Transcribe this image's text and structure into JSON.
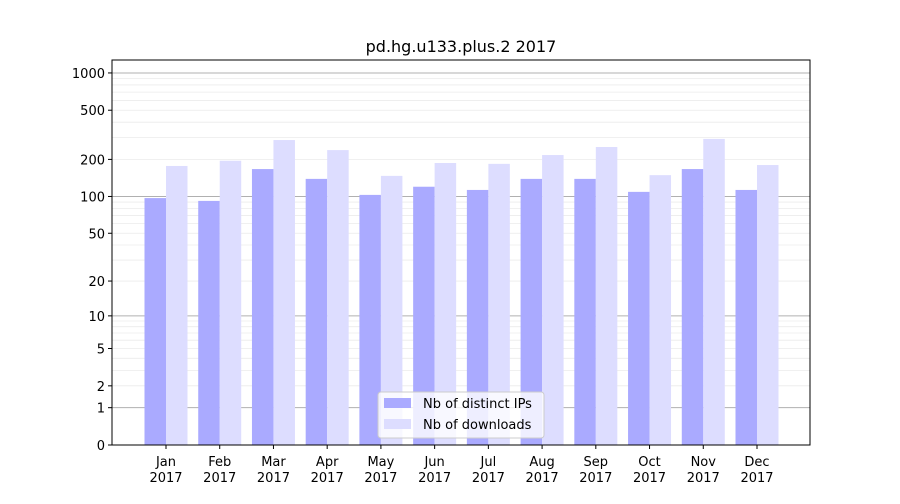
{
  "chart_data": {
    "type": "bar",
    "title": "pd.hg.u133.plus.2 2017",
    "xlabel": "",
    "ylabel": "",
    "yscale": "symlog",
    "ylim": [
      0,
      1300
    ],
    "yticks": [
      0,
      1,
      2,
      5,
      10,
      20,
      50,
      100,
      200,
      500,
      1000
    ],
    "categories": [
      "Jan\n2017",
      "Feb\n2017",
      "Mar\n2017",
      "Apr\n2017",
      "May\n2017",
      "Jun\n2017",
      "Jul\n2017",
      "Aug\n2017",
      "Sep\n2017",
      "Oct\n2017",
      "Nov\n2017",
      "Dec\n2017"
    ],
    "series": [
      {
        "name": "Nb of distinct IPs",
        "color": "#aaaaff",
        "values": [
          97,
          92,
          167,
          139,
          103,
          120,
          113,
          139,
          139,
          109,
          167,
          113
        ]
      },
      {
        "name": "Nb of downloads",
        "color": "#ddddff",
        "values": [
          177,
          195,
          287,
          238,
          147,
          187,
          184,
          217,
          252,
          149,
          293,
          180
        ]
      }
    ],
    "grid": true,
    "legend": "bottom-center"
  }
}
